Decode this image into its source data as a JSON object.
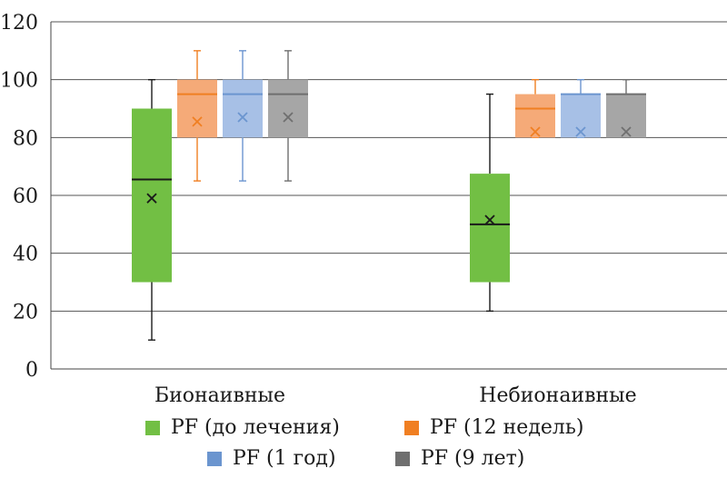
{
  "chart_data": {
    "type": "boxplot",
    "title": "",
    "xlabel": "",
    "ylabel": "",
    "ylim": [
      0,
      120
    ],
    "yticks": [
      0,
      20,
      40,
      60,
      80,
      100,
      120
    ],
    "grid": true,
    "categories": [
      "Бионаивные",
      "Небионаивные"
    ],
    "series": [
      {
        "name": "PF (до лечения)",
        "color": "#72bf44",
        "stats": [
          {
            "min": 10,
            "q1": 30,
            "median": 65.5,
            "q3": 90,
            "max": 100,
            "mean": 59
          },
          {
            "min": 20,
            "q1": 30,
            "median": 50,
            "q3": 67.5,
            "max": 95,
            "mean": 51.5
          }
        ]
      },
      {
        "name": "PF (12 недель)",
        "color": "#f5aa78",
        "accent": "#f07f22",
        "stats": [
          {
            "min": 65,
            "q1": 80,
            "median": 95,
            "q3": 100,
            "max": 110,
            "mean": 85.5
          },
          {
            "min": 80,
            "q1": 80,
            "median": 90,
            "q3": 95,
            "max": 100,
            "mean": 82
          }
        ]
      },
      {
        "name": "PF (1 год)",
        "color": "#a7c0e6",
        "accent": "#6b95cf",
        "stats": [
          {
            "min": 65,
            "q1": 80,
            "median": 95,
            "q3": 100,
            "max": 110,
            "mean": 87
          },
          {
            "min": 80,
            "q1": 80,
            "median": 95,
            "q3": 95,
            "max": 100,
            "mean": 82
          }
        ]
      },
      {
        "name": "PF (9 лет)",
        "color": "#a6a6a6",
        "accent": "#6f6f6f",
        "stats": [
          {
            "min": 65,
            "q1": 80,
            "median": 95,
            "q3": 100,
            "max": 110,
            "mean": 87
          },
          {
            "min": 80,
            "q1": 80,
            "median": 95,
            "q3": 95,
            "max": 100,
            "mean": 82
          }
        ]
      }
    ],
    "legend": {
      "position": "bottom",
      "items": [
        {
          "label": "PF (до лечения)",
          "color": "#72bf44"
        },
        {
          "label": "PF (12 недель)",
          "color": "#f07f22"
        },
        {
          "label": "PF (1 год)",
          "color": "#6b95cf"
        },
        {
          "label": "PF (9 лет)",
          "color": "#6f6f6f"
        }
      ]
    }
  }
}
